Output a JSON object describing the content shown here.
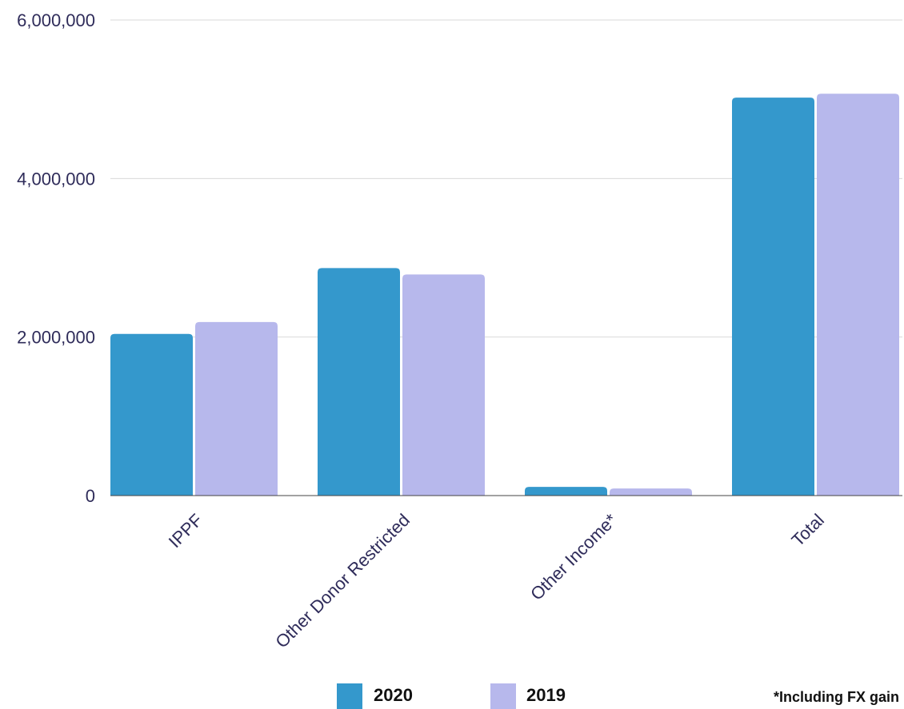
{
  "chart_data": {
    "type": "bar",
    "categories": [
      "IPPF",
      "Other Donor Restricted",
      "Other Income*",
      "Total"
    ],
    "series": [
      {
        "name": "2020",
        "color": "#3498cc",
        "values": [
          2040000,
          2870000,
          110000,
          5020000
        ]
      },
      {
        "name": "2019",
        "color": "#b7b8ec",
        "values": [
          2190000,
          2790000,
          90000,
          5070000
        ]
      }
    ],
    "yticks": [
      0,
      2000000,
      4000000,
      6000000
    ],
    "ytick_labels": [
      "0",
      "2,000,000",
      "4,000,000",
      "6,000,000"
    ],
    "ylim": [
      0,
      6000000
    ],
    "grid": true,
    "legend_position": "bottom",
    "footnote": "*Including FX gain",
    "title": "",
    "xlabel": "",
    "ylabel": "",
    "colors": {
      "text": "#2f2c5a",
      "gridline": "#d9d9d9",
      "axis": "#444444"
    }
  }
}
